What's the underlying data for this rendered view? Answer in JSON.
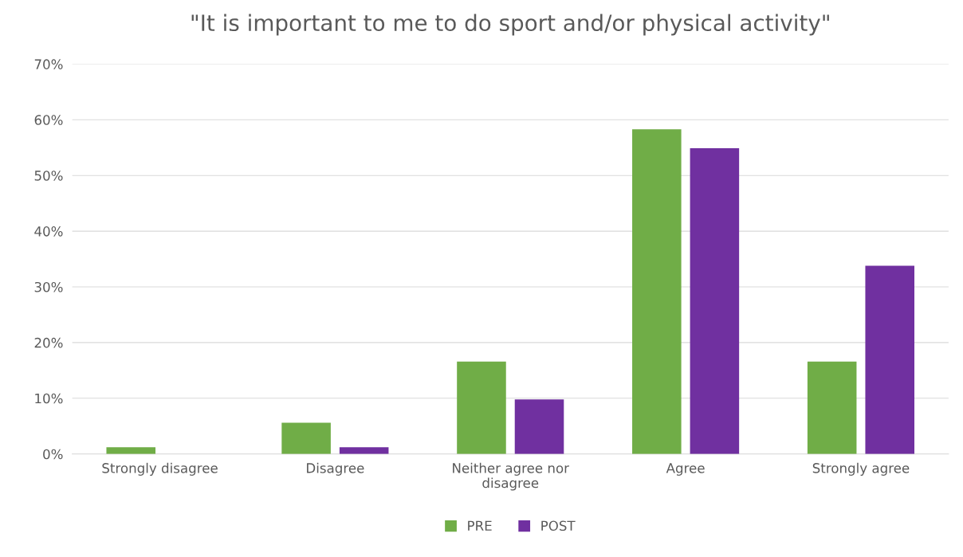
{
  "chart_data": {
    "type": "bar",
    "title": "\"It is important to me to do sport and/or physical activity\"",
    "categories": [
      "Strongly disagree",
      "Disagree",
      "Neither agree nor disagree",
      "Agree",
      "Strongly agree"
    ],
    "series": [
      {
        "name": "PRE",
        "color": "#70ad47",
        "values": [
          1.2,
          5.6,
          16.6,
          58.3,
          16.6
        ]
      },
      {
        "name": "POST",
        "color": "#7030a0",
        "values": [
          0,
          1.2,
          9.8,
          54.9,
          33.8
        ]
      }
    ],
    "ylim": [
      0,
      70
    ],
    "yticks": [
      {
        "value": 0,
        "label": "0%"
      },
      {
        "value": 10,
        "label": "10%"
      },
      {
        "value": 20,
        "label": "20%"
      },
      {
        "value": 30,
        "label": "30%"
      },
      {
        "value": 40,
        "label": "40%"
      },
      {
        "value": 50,
        "label": "50%"
      },
      {
        "value": 60,
        "label": "60%"
      },
      {
        "value": 70,
        "label": "70%"
      }
    ],
    "grid": "y",
    "legend": "bottom"
  }
}
